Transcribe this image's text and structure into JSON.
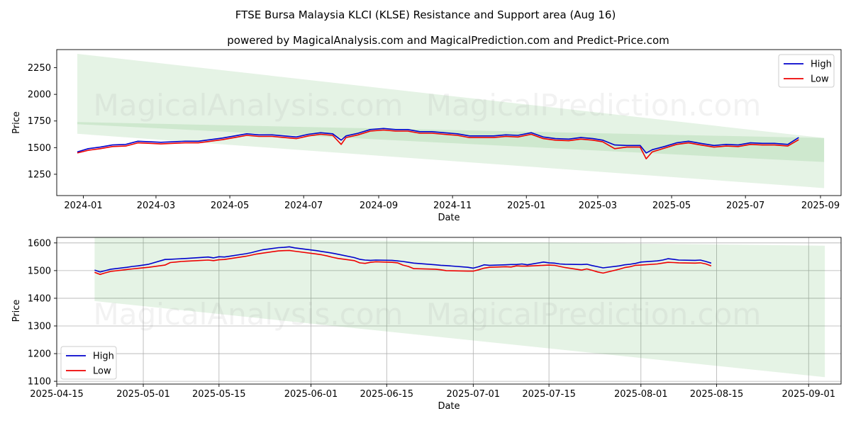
{
  "title": "FTSE Bursa Malaysia KLCI (KLSE) Resistance and Support area (Aug 16)",
  "subtitle": "powered by MagicalAnalysis.com and MagicalPrediction.com and Predict-Price.com",
  "watermarks": [
    "MagicalAnalysis.com",
    "MagicalPrediction.com"
  ],
  "colors": {
    "high": "#0000cc",
    "low": "#ee0000",
    "band": "#2ca02c"
  },
  "chart_data": [
    {
      "type": "line",
      "panel": "top",
      "xlabel": "Date",
      "ylabel": "Price",
      "xlim": [
        "2023-12-10",
        "2025-09-18"
      ],
      "ylim": [
        1050,
        2420
      ],
      "xticks": [
        {
          "date": "2024-01-01",
          "label": "2024-01"
        },
        {
          "date": "2024-03-01",
          "label": "2024-03"
        },
        {
          "date": "2024-05-01",
          "label": "2024-05"
        },
        {
          "date": "2024-07-01",
          "label": "2024-07"
        },
        {
          "date": "2024-09-01",
          "label": "2024-09"
        },
        {
          "date": "2024-11-01",
          "label": "2024-11"
        },
        {
          "date": "2025-01-01",
          "label": "2025-01"
        },
        {
          "date": "2025-03-01",
          "label": "2025-03"
        },
        {
          "date": "2025-05-01",
          "label": "2025-05"
        },
        {
          "date": "2025-07-01",
          "label": "2025-07"
        },
        {
          "date": "2025-09-01",
          "label": "2025-09"
        }
      ],
      "yticks": [
        1250,
        1500,
        1750,
        2000,
        2250
      ],
      "grid": false,
      "legend": {
        "position": "upper right",
        "entries": [
          "High",
          "Low"
        ]
      },
      "bands": [
        {
          "x": [
            "2023-12-27",
            "2025-09-04"
          ],
          "upper": [
            2380,
            1590
          ],
          "lower": [
            1630,
            1120
          ]
        },
        {
          "x": [
            "2023-12-27",
            "2025-09-04"
          ],
          "upper": [
            1740,
            1590
          ],
          "lower": [
            1720,
            1365
          ]
        }
      ],
      "series": [
        {
          "name": "High",
          "x": [
            "2023-12-27",
            "2024-01-05",
            "2024-01-15",
            "2024-01-25",
            "2024-02-05",
            "2024-02-15",
            "2024-02-25",
            "2024-03-05",
            "2024-03-15",
            "2024-03-25",
            "2024-04-05",
            "2024-04-15",
            "2024-04-25",
            "2024-05-05",
            "2024-05-15",
            "2024-05-25",
            "2024-06-05",
            "2024-06-15",
            "2024-06-25",
            "2024-07-05",
            "2024-07-15",
            "2024-07-25",
            "2024-08-01",
            "2024-08-05",
            "2024-08-15",
            "2024-08-25",
            "2024-09-05",
            "2024-09-15",
            "2024-09-25",
            "2024-10-05",
            "2024-10-15",
            "2024-10-25",
            "2024-11-05",
            "2024-11-15",
            "2024-11-25",
            "2024-12-05",
            "2024-12-15",
            "2024-12-25",
            "2025-01-05",
            "2025-01-15",
            "2025-01-25",
            "2025-02-05",
            "2025-02-15",
            "2025-02-25",
            "2025-03-05",
            "2025-03-15",
            "2025-03-25",
            "2025-04-05",
            "2025-04-10",
            "2025-04-15",
            "2025-04-25",
            "2025-05-05",
            "2025-05-15",
            "2025-05-25",
            "2025-06-05",
            "2025-06-15",
            "2025-06-25",
            "2025-07-05",
            "2025-07-15",
            "2025-07-25",
            "2025-08-05",
            "2025-08-14"
          ],
          "values": [
            1460,
            1490,
            1505,
            1525,
            1530,
            1560,
            1555,
            1550,
            1555,
            1560,
            1560,
            1575,
            1590,
            1610,
            1630,
            1620,
            1620,
            1610,
            1600,
            1625,
            1640,
            1630,
            1570,
            1610,
            1635,
            1670,
            1680,
            1670,
            1670,
            1650,
            1650,
            1640,
            1630,
            1610,
            1610,
            1610,
            1620,
            1615,
            1640,
            1600,
            1585,
            1580,
            1595,
            1585,
            1570,
            1525,
            1520,
            1520,
            1450,
            1480,
            1510,
            1545,
            1560,
            1540,
            1520,
            1530,
            1525,
            1545,
            1540,
            1540,
            1530,
            1595
          ]
        },
        {
          "name": "Low",
          "x": [
            "2023-12-27",
            "2024-01-05",
            "2024-01-15",
            "2024-01-25",
            "2024-02-05",
            "2024-02-15",
            "2024-02-25",
            "2024-03-05",
            "2024-03-15",
            "2024-03-25",
            "2024-04-05",
            "2024-04-15",
            "2024-04-25",
            "2024-05-05",
            "2024-05-15",
            "2024-05-25",
            "2024-06-05",
            "2024-06-15",
            "2024-06-25",
            "2024-07-05",
            "2024-07-15",
            "2024-07-25",
            "2024-08-01",
            "2024-08-05",
            "2024-08-15",
            "2024-08-25",
            "2024-09-05",
            "2024-09-15",
            "2024-09-25",
            "2024-10-05",
            "2024-10-15",
            "2024-10-25",
            "2024-11-05",
            "2024-11-15",
            "2024-11-25",
            "2024-12-05",
            "2024-12-15",
            "2024-12-25",
            "2025-01-05",
            "2025-01-15",
            "2025-01-25",
            "2025-02-05",
            "2025-02-15",
            "2025-02-25",
            "2025-03-05",
            "2025-03-15",
            "2025-03-25",
            "2025-04-05",
            "2025-04-10",
            "2025-04-15",
            "2025-04-25",
            "2025-05-05",
            "2025-05-15",
            "2025-05-25",
            "2025-06-05",
            "2025-06-15",
            "2025-06-25",
            "2025-07-05",
            "2025-07-15",
            "2025-07-25",
            "2025-08-05",
            "2025-08-14"
          ],
          "values": [
            1450,
            1475,
            1490,
            1510,
            1515,
            1545,
            1540,
            1535,
            1540,
            1545,
            1545,
            1560,
            1575,
            1595,
            1615,
            1605,
            1605,
            1595,
            1585,
            1610,
            1625,
            1615,
            1530,
            1595,
            1620,
            1655,
            1665,
            1655,
            1655,
            1635,
            1635,
            1625,
            1615,
            1595,
            1595,
            1595,
            1605,
            1600,
            1625,
            1585,
            1570,
            1565,
            1580,
            1570,
            1555,
            1490,
            1505,
            1505,
            1395,
            1460,
            1495,
            1530,
            1545,
            1525,
            1505,
            1515,
            1510,
            1530,
            1525,
            1525,
            1515,
            1575
          ]
        }
      ]
    },
    {
      "type": "line",
      "panel": "bottom",
      "xlabel": "Date",
      "ylabel": "Price",
      "xlim": [
        "2025-04-15",
        "2025-09-07"
      ],
      "ylim": [
        1090,
        1620
      ],
      "xticks": [
        {
          "date": "2025-04-15",
          "label": "2025-04-15"
        },
        {
          "date": "2025-05-01",
          "label": "2025-05-01"
        },
        {
          "date": "2025-05-15",
          "label": "2025-05-15"
        },
        {
          "date": "2025-06-01",
          "label": "2025-06-01"
        },
        {
          "date": "2025-06-15",
          "label": "2025-06-15"
        },
        {
          "date": "2025-07-01",
          "label": "2025-07-01"
        },
        {
          "date": "2025-07-15",
          "label": "2025-07-15"
        },
        {
          "date": "2025-08-01",
          "label": "2025-08-01"
        },
        {
          "date": "2025-08-15",
          "label": "2025-08-15"
        },
        {
          "date": "2025-09-01",
          "label": "2025-09-01"
        }
      ],
      "yticks": [
        1100,
        1200,
        1300,
        1400,
        1500,
        1600
      ],
      "grid": true,
      "legend": {
        "position": "lower left",
        "entries": [
          "High",
          "Low"
        ]
      },
      "bands": [
        {
          "x": [
            "2025-04-22",
            "2025-09-04"
          ],
          "upper": [
            1620,
            1590
          ],
          "lower": [
            1400,
            1365
          ]
        },
        {
          "x": [
            "2025-04-22",
            "2025-09-04"
          ],
          "upper": [
            1400,
            1365
          ],
          "lower": [
            1390,
            1115
          ]
        }
      ],
      "series": [
        {
          "name": "High",
          "x": [
            "2025-04-22",
            "2025-04-23",
            "2025-04-24",
            "2025-04-25",
            "2025-04-28",
            "2025-04-29",
            "2025-04-30",
            "2025-05-02",
            "2025-05-05",
            "2025-05-06",
            "2025-05-07",
            "2025-05-08",
            "2025-05-09",
            "2025-05-13",
            "2025-05-14",
            "2025-05-15",
            "2025-05-16",
            "2025-05-20",
            "2025-05-21",
            "2025-05-22",
            "2025-05-23",
            "2025-05-26",
            "2025-05-27",
            "2025-05-28",
            "2025-05-29",
            "2025-06-02",
            "2025-06-03",
            "2025-06-04",
            "2025-06-05",
            "2025-06-06",
            "2025-06-09",
            "2025-06-10",
            "2025-06-11",
            "2025-06-12",
            "2025-06-13",
            "2025-06-16",
            "2025-06-17",
            "2025-06-18",
            "2025-06-19",
            "2025-06-20",
            "2025-06-24",
            "2025-06-25",
            "2025-06-26",
            "2025-06-30",
            "2025-07-01",
            "2025-07-02",
            "2025-07-03",
            "2025-07-04",
            "2025-07-07",
            "2025-07-08",
            "2025-07-09",
            "2025-07-10",
            "2025-07-11",
            "2025-07-14",
            "2025-07-15",
            "2025-07-16",
            "2025-07-17",
            "2025-07-18",
            "2025-07-21",
            "2025-07-22",
            "2025-07-23",
            "2025-07-24",
            "2025-07-25",
            "2025-07-28",
            "2025-07-29",
            "2025-07-30",
            "2025-07-31",
            "2025-08-01",
            "2025-08-04",
            "2025-08-05",
            "2025-08-06",
            "2025-08-07",
            "2025-08-08",
            "2025-08-11",
            "2025-08-12",
            "2025-08-13",
            "2025-08-14"
          ],
          "values": [
            1502,
            1495,
            1500,
            1505,
            1512,
            1515,
            1517,
            1523,
            1540,
            1541,
            1542,
            1543,
            1544,
            1549,
            1546,
            1550,
            1549,
            1561,
            1565,
            1570,
            1575,
            1583,
            1584,
            1586,
            1582,
            1572,
            1569,
            1566,
            1563,
            1559,
            1547,
            1541,
            1538,
            1537,
            1538,
            1537,
            1535,
            1533,
            1530,
            1527,
            1521,
            1519,
            1518,
            1512,
            1509,
            1514,
            1521,
            1519,
            1521,
            1522,
            1522,
            1524,
            1521,
            1531,
            1528,
            1527,
            1524,
            1523,
            1522,
            1523,
            1518,
            1514,
            1510,
            1517,
            1521,
            1523,
            1526,
            1531,
            1535,
            1538,
            1543,
            1541,
            1538,
            1537,
            1538,
            1533,
            1527
          ]
        },
        {
          "name": "Low",
          "x": [
            "2025-04-22",
            "2025-04-23",
            "2025-04-24",
            "2025-04-25",
            "2025-04-28",
            "2025-04-29",
            "2025-04-30",
            "2025-05-02",
            "2025-05-05",
            "2025-05-06",
            "2025-05-07",
            "2025-05-08",
            "2025-05-09",
            "2025-05-13",
            "2025-05-14",
            "2025-05-15",
            "2025-05-16",
            "2025-05-20",
            "2025-05-21",
            "2025-05-22",
            "2025-05-23",
            "2025-05-26",
            "2025-05-27",
            "2025-05-28",
            "2025-05-29",
            "2025-06-02",
            "2025-06-03",
            "2025-06-04",
            "2025-06-05",
            "2025-06-06",
            "2025-06-09",
            "2025-06-10",
            "2025-06-11",
            "2025-06-12",
            "2025-06-13",
            "2025-06-16",
            "2025-06-17",
            "2025-06-18",
            "2025-06-19",
            "2025-06-20",
            "2025-06-24",
            "2025-06-25",
            "2025-06-26",
            "2025-06-30",
            "2025-07-01",
            "2025-07-02",
            "2025-07-03",
            "2025-07-04",
            "2025-07-07",
            "2025-07-08",
            "2025-07-09",
            "2025-07-10",
            "2025-07-11",
            "2025-07-14",
            "2025-07-15",
            "2025-07-16",
            "2025-07-17",
            "2025-07-18",
            "2025-07-21",
            "2025-07-22",
            "2025-07-23",
            "2025-07-24",
            "2025-07-25",
            "2025-07-28",
            "2025-07-29",
            "2025-07-30",
            "2025-07-31",
            "2025-08-01",
            "2025-08-04",
            "2025-08-05",
            "2025-08-06",
            "2025-08-07",
            "2025-08-08",
            "2025-08-11",
            "2025-08-12",
            "2025-08-13",
            "2025-08-14"
          ],
          "values": [
            1494,
            1486,
            1492,
            1497,
            1504,
            1506,
            1508,
            1512,
            1520,
            1529,
            1531,
            1533,
            1534,
            1538,
            1536,
            1539,
            1540,
            1552,
            1556,
            1560,
            1563,
            1571,
            1572,
            1573,
            1570,
            1560,
            1557,
            1553,
            1548,
            1544,
            1536,
            1528,
            1526,
            1530,
            1532,
            1530,
            1528,
            1520,
            1515,
            1507,
            1505,
            1503,
            1500,
            1498,
            1498,
            1503,
            1509,
            1512,
            1514,
            1513,
            1517,
            1516,
            1516,
            1519,
            1520,
            1519,
            1515,
            1511,
            1502,
            1506,
            1501,
            1495,
            1491,
            1505,
            1511,
            1514,
            1519,
            1520,
            1524,
            1527,
            1530,
            1529,
            1528,
            1527,
            1528,
            1524,
            1517
          ]
        }
      ]
    }
  ]
}
